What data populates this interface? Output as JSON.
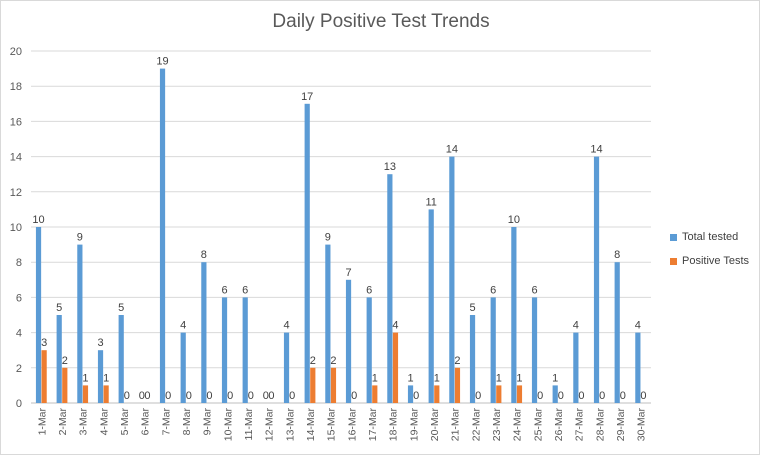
{
  "chart_data": {
    "type": "bar",
    "title": "Daily Positive Test Trends",
    "xlabel": "",
    "ylabel": "",
    "ylim": [
      0,
      20
    ],
    "yticks": [
      0,
      2,
      4,
      6,
      8,
      10,
      12,
      14,
      16,
      18,
      20
    ],
    "grid": true,
    "legend_position": "right",
    "categories": [
      "1-Mar",
      "2-Mar",
      "3-Mar",
      "4-Mar",
      "5-Mar",
      "6-Mar",
      "7-Mar",
      "8-Mar",
      "9-Mar",
      "10-Mar",
      "11-Mar",
      "12-Mar",
      "13-Mar",
      "14-Mar",
      "15-Mar",
      "16-Mar",
      "17-Mar",
      "18-Mar",
      "19-Mar",
      "20-Mar",
      "21-Mar",
      "22-Mar",
      "23-Mar",
      "24-Mar",
      "25-Mar",
      "26-Mar",
      "27-Mar",
      "28-Mar",
      "29-Mar",
      "30-Mar"
    ],
    "series": [
      {
        "name": "Total tested",
        "color": "#5b9bd5",
        "values": [
          10,
          5,
          9,
          3,
          5,
          0,
          19,
          4,
          8,
          6,
          6,
          0,
          4,
          17,
          9,
          7,
          6,
          13,
          1,
          11,
          14,
          5,
          6,
          10,
          6,
          1,
          4,
          14,
          8,
          4
        ]
      },
      {
        "name": "Positive Tests",
        "color": "#ed7d31",
        "values": [
          3,
          2,
          1,
          1,
          0,
          0,
          0,
          0,
          0,
          0,
          0,
          0,
          0,
          2,
          2,
          0,
          1,
          4,
          0,
          1,
          2,
          0,
          1,
          1,
          0,
          0,
          0,
          0,
          0,
          0
        ]
      }
    ]
  }
}
